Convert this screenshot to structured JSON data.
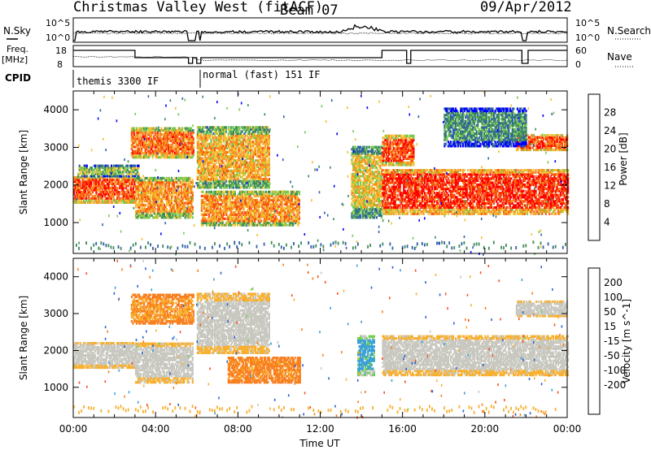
{
  "header": {
    "station": "Christmas Valley West (fitACF)",
    "beam": "Beam 07",
    "date": "09/Apr/2012"
  },
  "noise_panel": {
    "left_label": "N.Sky",
    "right_label": "N.Search",
    "left_ticks": [
      "10^5",
      "10^0"
    ],
    "right_ticks": [
      "10^5",
      "10^0"
    ]
  },
  "freq_panel": {
    "left_label_1": "Freq.",
    "left_label_2": "[MHz]",
    "right_label": "Nave",
    "left_ticks": [
      "18",
      "8"
    ],
    "right_ticks": [
      "60",
      "0"
    ]
  },
  "cpid_panel": {
    "label": "CPID",
    "modes": [
      {
        "name": "themis 3300 IF",
        "start_hour": 0.0
      },
      {
        "name": "normal (fast) 151 IF",
        "start_hour": 6.0
      }
    ]
  },
  "colors": {
    "power_scale": [
      "#0000ff",
      "#2f5fa8",
      "#3d8c5a",
      "#78c850",
      "#f0c030",
      "#f89020",
      "#f85010",
      "#ff0000"
    ],
    "velocity_scale": [
      "#1030c0",
      "#2f60d0",
      "#3aa0d8",
      "#70d050",
      "#c8c8c0",
      "#c8c8c0",
      "#f8b030",
      "#f88020",
      "#f85020",
      "#ff0000"
    ]
  },
  "chart_data": [
    {
      "type": "heatmap",
      "name": "power",
      "xlabel": "",
      "ylabel": "Slant Range [km]",
      "xlim": [
        0,
        24
      ],
      "ylim": [
        180,
        4500
      ],
      "yticks": [
        1000,
        2000,
        3000,
        4000
      ],
      "colorbar": {
        "label": "Power [dB]",
        "ticks": [
          4,
          8,
          12,
          16,
          20,
          24,
          28
        ],
        "range": [
          0,
          32
        ]
      },
      "features": [
        {
          "x": [
            0.0,
            3.0
          ],
          "y": [
            1500,
            2200
          ],
          "level": 26
        },
        {
          "x": [
            0.2,
            3.2
          ],
          "y": [
            2200,
            2500
          ],
          "level": 14
        },
        {
          "x": [
            2.8,
            5.8
          ],
          "y": [
            2700,
            3500
          ],
          "level": 24
        },
        {
          "x": [
            3.0,
            5.8
          ],
          "y": [
            1100,
            2200
          ],
          "level": 22
        },
        {
          "x": [
            6.0,
            9.5
          ],
          "y": [
            1900,
            3500
          ],
          "level": 20
        },
        {
          "x": [
            6.2,
            11.0
          ],
          "y": [
            900,
            1800
          ],
          "level": 22
        },
        {
          "x": [
            13.5,
            15.0
          ],
          "y": [
            1100,
            3000
          ],
          "level": 18
        },
        {
          "x": [
            15.0,
            24.0
          ],
          "y": [
            1200,
            2400
          ],
          "level": 28
        },
        {
          "x": [
            15.0,
            16.5
          ],
          "y": [
            2500,
            3300
          ],
          "level": 26
        },
        {
          "x": [
            21.5,
            24.0
          ],
          "y": [
            2900,
            3300
          ],
          "level": 26
        },
        {
          "x": [
            18.0,
            22.0
          ],
          "y": [
            3000,
            4000
          ],
          "level": 10
        }
      ]
    },
    {
      "type": "heatmap",
      "name": "velocity",
      "xlabel": "Time UT",
      "ylabel": "Slant Range [km]",
      "xlim": [
        0,
        24
      ],
      "ylim": [
        180,
        4500
      ],
      "yticks": [
        1000,
        2000,
        3000,
        4000
      ],
      "xticks": [
        "00:00",
        "04:00",
        "08:00",
        "12:00",
        "16:00",
        "20:00",
        "00:00"
      ],
      "colorbar": {
        "label": "Velocity [m s^-1]",
        "ticks": [
          200,
          100,
          50,
          15,
          -15,
          -50,
          -100,
          -200
        ]
      },
      "features": [
        {
          "x": [
            0.0,
            3.0
          ],
          "y": [
            1500,
            2200
          ],
          "level": 0
        },
        {
          "x": [
            2.8,
            5.8
          ],
          "y": [
            2700,
            3500
          ],
          "level": -50
        },
        {
          "x": [
            3.0,
            5.8
          ],
          "y": [
            1100,
            2200
          ],
          "level": 0
        },
        {
          "x": [
            6.0,
            9.5
          ],
          "y": [
            1900,
            3500
          ],
          "level": 0
        },
        {
          "x": [
            7.5,
            11.0
          ],
          "y": [
            1100,
            1800
          ],
          "level": -60
        },
        {
          "x": [
            13.8,
            14.6
          ],
          "y": [
            1300,
            2400
          ],
          "level": 40
        },
        {
          "x": [
            15.0,
            24.0
          ],
          "y": [
            1300,
            2400
          ],
          "level": 0
        },
        {
          "x": [
            21.5,
            24.0
          ],
          "y": [
            2900,
            3300
          ],
          "level": 0
        }
      ]
    }
  ]
}
